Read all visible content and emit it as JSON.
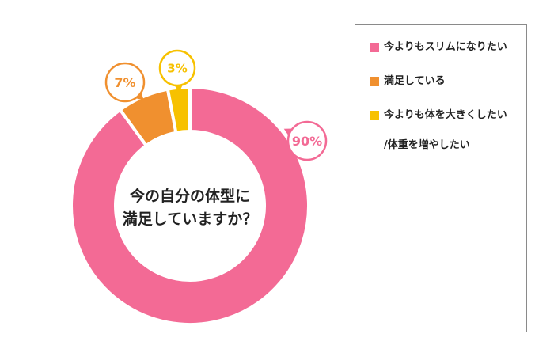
{
  "chart_data": {
    "type": "pie",
    "title": "",
    "center_label": [
      "今の自分の体型に",
      "満足していますか？"
    ],
    "slices": [
      {
        "label": "今よりもスリムになりたい",
        "value": 90,
        "display": "90%",
        "color": "#f36a95"
      },
      {
        "label": "満足している",
        "value": 7,
        "display": "7%",
        "color": "#f0902f"
      },
      {
        "label": "今よりも体を大きくしたい\n/体重を増やしたい",
        "value": 3,
        "display": "3%",
        "color": "#f7c100"
      }
    ],
    "legend_position": "right"
  }
}
